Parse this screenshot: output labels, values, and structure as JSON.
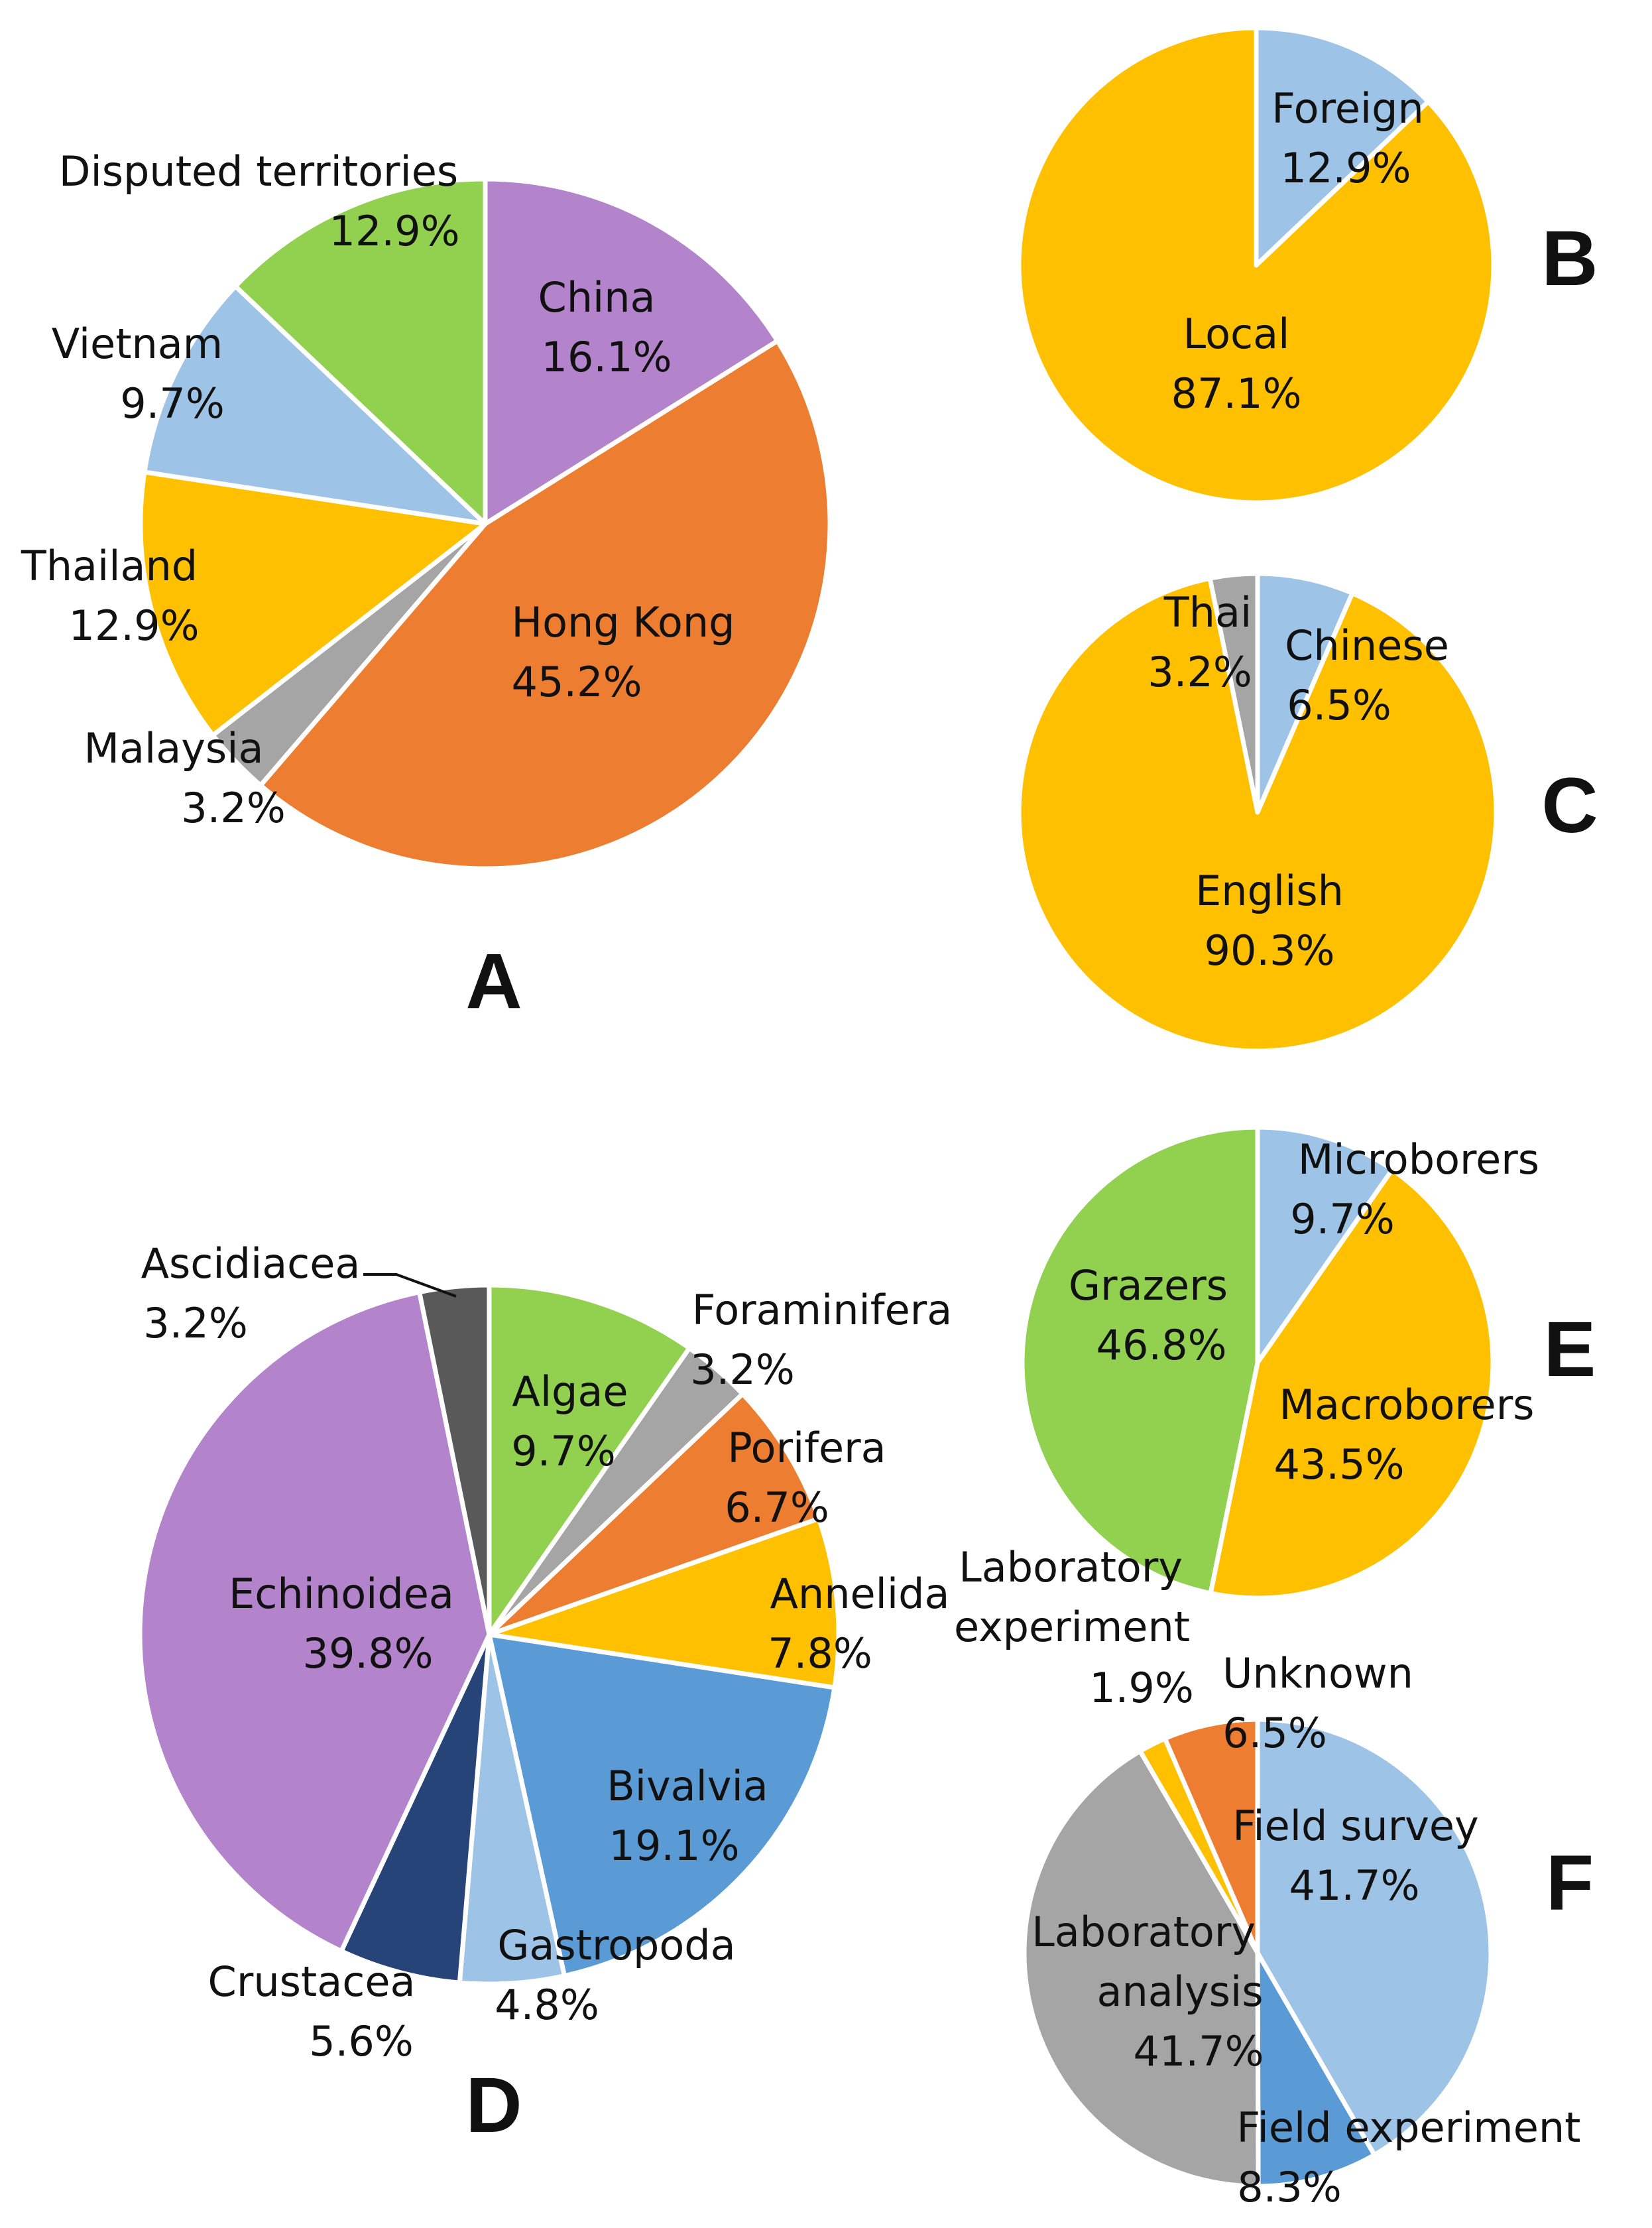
{
  "chart_data": [
    {
      "id": "A",
      "type": "pie",
      "panel_label": "A",
      "slices": [
        {
          "label": "China",
          "pct_text": "16.1%",
          "value": 16.1,
          "color": "#B384CC"
        },
        {
          "label": "Hong Kong",
          "pct_text": "45.2%",
          "value": 45.2,
          "color": "#ED7D31"
        },
        {
          "label": "Malaysia",
          "pct_text": "3.2%",
          "value": 3.2,
          "color": "#A5A5A5"
        },
        {
          "label": "Thailand",
          "pct_text": "12.9%",
          "value": 12.9,
          "color": "#FFC000"
        },
        {
          "label": "Vietnam",
          "pct_text": "9.7%",
          "value": 9.7,
          "color": "#9DC3E6"
        },
        {
          "label": "Disputed territories",
          "pct_text": "12.9%",
          "value": 12.9,
          "color": "#92D050"
        }
      ]
    },
    {
      "id": "B",
      "type": "pie",
      "panel_label": "B",
      "slices": [
        {
          "label": "Foreign",
          "pct_text": "12.9%",
          "value": 12.9,
          "color": "#9DC3E6"
        },
        {
          "label": "Local",
          "pct_text": "87.1%",
          "value": 87.1,
          "color": "#FFC000"
        }
      ]
    },
    {
      "id": "C",
      "type": "pie",
      "panel_label": "C",
      "slices": [
        {
          "label": "Chinese",
          "pct_text": "6.5%",
          "value": 6.5,
          "color": "#9DC3E6"
        },
        {
          "label": "English",
          "pct_text": "90.3%",
          "value": 90.3,
          "color": "#FFC000"
        },
        {
          "label": "Thai",
          "pct_text": "3.2%",
          "value": 3.2,
          "color": "#A5A5A5"
        }
      ]
    },
    {
      "id": "D",
      "type": "pie",
      "panel_label": "D",
      "slices": [
        {
          "label": "Algae",
          "pct_text": "9.7%",
          "value": 9.7,
          "color": "#92D050"
        },
        {
          "label": "Foraminifera",
          "pct_text": "3.2%",
          "value": 3.2,
          "color": "#A5A5A5"
        },
        {
          "label": "Porifera",
          "pct_text": "6.7%",
          "value": 6.7,
          "color": "#ED7D31"
        },
        {
          "label": "Annelida",
          "pct_text": "7.8%",
          "value": 7.8,
          "color": "#FFC000"
        },
        {
          "label": "Bivalvia",
          "pct_text": "19.1%",
          "value": 19.1,
          "color": "#5B9BD5"
        },
        {
          "label": "Gastropoda",
          "pct_text": "4.8%",
          "value": 4.8,
          "color": "#9DC3E6"
        },
        {
          "label": "Crustacea",
          "pct_text": "5.6%",
          "value": 5.6,
          "color": "#264478"
        },
        {
          "label": "Echinoidea",
          "pct_text": "39.8%",
          "value": 39.8,
          "color": "#B384CC"
        },
        {
          "label": "Ascidiacea",
          "pct_text": "3.2%",
          "value": 3.2,
          "color": "#595959"
        }
      ]
    },
    {
      "id": "E",
      "type": "pie",
      "panel_label": "E",
      "slices": [
        {
          "label": "Microborers",
          "pct_text": "9.7%",
          "value": 9.7,
          "color": "#9DC3E6"
        },
        {
          "label": "Macroborers",
          "pct_text": "43.5%",
          "value": 43.5,
          "color": "#FFC000"
        },
        {
          "label": "Grazers",
          "pct_text": "46.8%",
          "value": 46.8,
          "color": "#92D050"
        }
      ]
    },
    {
      "id": "F",
      "type": "pie",
      "panel_label": "F",
      "slices": [
        {
          "label": "Field survey",
          "pct_text": "41.7%",
          "value": 41.7,
          "color": "#9DC3E6"
        },
        {
          "label": "Field experiment",
          "pct_text": "8.3%",
          "value": 8.3,
          "color": "#5B9BD5"
        },
        {
          "label": "Laboratory analysis",
          "pct_text": "41.7%",
          "value": 41.7,
          "color": "#A5A5A5"
        },
        {
          "label": "Laboratory experiment",
          "pct_text": "1.9%",
          "value": 1.9,
          "color": "#FFC000"
        },
        {
          "label": "Unknown",
          "pct_text": "6.5%",
          "value": 6.5,
          "color": "#ED7D31"
        }
      ]
    }
  ]
}
